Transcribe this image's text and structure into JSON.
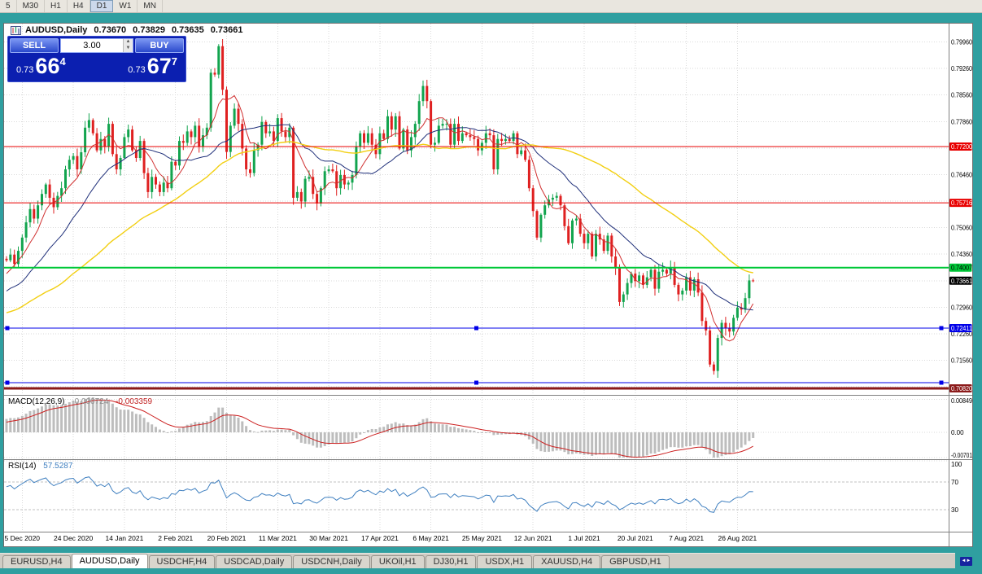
{
  "periods_toolbar": {
    "items": [
      "5",
      "M30",
      "H1",
      "H4",
      "D1",
      "W1",
      "MN"
    ],
    "active": "D1"
  },
  "chart": {
    "symbol": "AUDUSD,Daily",
    "ohlc": {
      "open": "0.73670",
      "high": "0.73829",
      "low": "0.73635",
      "close": "0.73661"
    }
  },
  "trade_panel": {
    "sell_label": "SELL",
    "buy_label": "BUY",
    "volume": "3.00",
    "sell_price": {
      "base": "0.73",
      "big": "66",
      "sup": "4"
    },
    "buy_price": {
      "base": "0.73",
      "big": "67",
      "sup": "7"
    }
  },
  "price_axis": {
    "grid_levels": [
      0.7996,
      0.7926,
      0.7856,
      0.7786,
      0.7716,
      0.7646,
      0.7576,
      0.7506,
      0.7436,
      0.7366,
      0.7296,
      0.7226,
      0.7156,
      0.7086
    ],
    "labels": [
      {
        "text": "0.79960",
        "value": 0.7996
      },
      {
        "text": "0.79260",
        "value": 0.7926
      },
      {
        "text": "0.78560",
        "value": 0.7856
      },
      {
        "text": "0.77860",
        "value": 0.7786
      },
      {
        "text": "0.76460",
        "value": 0.7646
      },
      {
        "text": "0.75060",
        "value": 0.7506
      },
      {
        "text": "0.74360",
        "value": 0.7436
      },
      {
        "text": "0.72960",
        "value": 0.7296
      },
      {
        "text": "0.72260",
        "value": 0.7226
      },
      {
        "text": "0.71560",
        "value": 0.7156
      }
    ]
  },
  "current_price": {
    "text": "0.73661",
    "value": 0.73661,
    "bg": "#000000",
    "text_color": "#ffffff"
  },
  "levels": [
    {
      "text": "0.77200",
      "value": 0.772,
      "color": "#e80000",
      "text_color": "#ffffff",
      "width": 1,
      "handles": false
    },
    {
      "text": "0.75716",
      "value": 0.75716,
      "color": "#e80000",
      "text_color": "#ffffff",
      "width": 1,
      "handles": false
    },
    {
      "text": "0.74007",
      "value": 0.74007,
      "color": "#00c838",
      "text_color": "#000000",
      "width": 2,
      "handles": false
    },
    {
      "text": "0.72411",
      "value": 0.72411,
      "color": "#0000e8",
      "text_color": "#ffffff",
      "width": 1,
      "handles": true
    },
    {
      "text": "",
      "value": 0.7097,
      "color": "#0000e8",
      "text_color": "#ffffff",
      "width": 1,
      "handles": true
    },
    {
      "text": "0.70820",
      "value": 0.7082,
      "color": "#8b1a1a",
      "text_color": "#ffffff",
      "width": 3,
      "handles": false
    }
  ],
  "x_axis": {
    "labels": [
      "5 Dec 2020",
      "24 Dec 2020",
      "14 Jan 2021",
      "2 Feb 2021",
      "20 Feb 2021",
      "11 Mar 2021",
      "30 Mar 2021",
      "17 Apr 2021",
      "6 May 2021",
      "25 May 2021",
      "12 Jun 2021",
      "1 Jul 2021",
      "20 Jul 2021",
      "7 Aug 2021",
      "26 Aug 2021"
    ]
  },
  "macd": {
    "title": "MACD(12,26,9)",
    "main_value": "-0.000724",
    "signal_value": "-0.003359",
    "fast": 12,
    "slow": 26,
    "signal": 9,
    "axis_labels": [
      {
        "text": "0.00849",
        "value": 0.00849
      },
      {
        "text": "0.00",
        "value": 0
      },
      {
        "text": "-0.00701",
        "value": -0.00701
      }
    ]
  },
  "rsi": {
    "title": "RSI(14)",
    "value": "57.5287",
    "period": 14,
    "axis_labels": [
      {
        "text": "100",
        "value": 100
      },
      {
        "text": "70",
        "value": 70
      },
      {
        "text": "30",
        "value": 30
      }
    ],
    "levels": [
      70,
      30
    ]
  },
  "tabs": {
    "active_index": 1,
    "items": [
      "EURUSD,H4",
      "AUDUSD,Daily",
      "USDCHF,H4",
      "USDCAD,Daily",
      "USDCNH,Daily",
      "UKOil,H1",
      "DJ30,H1",
      "USDX,H1",
      "XAUUSD,H4",
      "GBPUSD,H1"
    ]
  },
  "scroll_button": {
    "glyph": "◄►"
  },
  "chart_data": {
    "type": "candlestick",
    "symbol": "AUDUSD",
    "timeframe": "Daily",
    "up_color": "#12a44e",
    "down_color": "#df2020",
    "price_range": {
      "top": 0.8047,
      "bottom": 0.7067
    },
    "ma_overlays": [
      {
        "type": "sma",
        "period": 7,
        "color": "#d03030",
        "width": 1
      },
      {
        "type": "sma",
        "period": 21,
        "color": "#20307a",
        "width": 1
      },
      {
        "type": "sma",
        "period": 55,
        "color": "#f2cf12",
        "width": 1.4
      }
    ],
    "pre_closes": [
      0.728,
      0.726,
      0.723,
      0.72,
      0.717,
      0.715,
      0.717,
      0.72,
      0.723,
      0.726,
      0.729,
      0.731,
      0.729,
      0.726,
      0.723,
      0.72,
      0.718,
      0.721,
      0.724,
      0.727,
      0.73,
      0.732,
      0.729,
      0.726,
      0.724,
      0.721,
      0.719,
      0.722,
      0.725,
      0.728,
      0.731,
      0.733,
      0.73,
      0.727,
      0.725,
      0.728,
      0.731,
      0.734,
      0.731,
      0.728,
      0.726,
      0.729,
      0.732,
      0.735,
      0.733,
      0.73,
      0.732,
      0.735,
      0.738,
      0.736,
      0.733,
      0.736,
      0.739,
      0.741,
      0.7424
    ],
    "closes": [
      0.742,
      0.7435,
      0.741,
      0.7445,
      0.748,
      0.752,
      0.7555,
      0.753,
      0.7565,
      0.7595,
      0.762,
      0.7585,
      0.756,
      0.759,
      0.761,
      0.766,
      0.7685,
      0.7695,
      0.766,
      0.7705,
      0.777,
      0.779,
      0.7755,
      0.771,
      0.774,
      0.772,
      0.778,
      0.77,
      0.766,
      0.769,
      0.7745,
      0.7765,
      0.771,
      0.769,
      0.7735,
      0.765,
      0.76,
      0.764,
      0.762,
      0.76,
      0.7625,
      0.761,
      0.768,
      0.767,
      0.7735,
      0.773,
      0.776,
      0.7745,
      0.7775,
      0.772,
      0.775,
      0.777,
      0.7915,
      0.791,
      0.7985,
      0.787,
      0.7706,
      0.7775,
      0.782,
      0.778,
      0.7715,
      0.766,
      0.765,
      0.771,
      0.7725,
      0.7785,
      0.7755,
      0.776,
      0.7735,
      0.7795,
      0.776,
      0.7745,
      0.777,
      0.7585,
      0.76,
      0.7575,
      0.7635,
      0.764,
      0.7595,
      0.757,
      0.761,
      0.7655,
      0.766,
      0.7655,
      0.761,
      0.7645,
      0.762,
      0.7625,
      0.7645,
      0.772,
      0.7755,
      0.773,
      0.7755,
      0.7725,
      0.77,
      0.7755,
      0.774,
      0.78,
      0.7765,
      0.78,
      0.7715,
      0.7765,
      0.771,
      0.7745,
      0.778,
      0.784,
      0.788,
      0.784,
      0.7725,
      0.773,
      0.7775,
      0.778,
      0.778,
      0.7725,
      0.778,
      0.7735,
      0.7755,
      0.775,
      0.7745,
      0.774,
      0.771,
      0.773,
      0.7755,
      0.775,
      0.766,
      0.774,
      0.7735,
      0.774,
      0.7735,
      0.7755,
      0.77,
      0.771,
      0.7685,
      0.761,
      0.755,
      0.748,
      0.754,
      0.7565,
      0.758,
      0.7585,
      0.759,
      0.7565,
      0.751,
      0.7465,
      0.7525,
      0.753,
      0.749,
      0.7465,
      0.749,
      0.743,
      0.749,
      0.7475,
      0.7445,
      0.7485,
      0.743,
      0.74,
      0.731,
      0.733,
      0.736,
      0.7385,
      0.7365,
      0.738,
      0.7355,
      0.7375,
      0.7395,
      0.7345,
      0.739,
      0.7395,
      0.7385,
      0.74,
      0.7355,
      0.733,
      0.734,
      0.7375,
      0.734,
      0.737,
      0.7335,
      0.726,
      0.7235,
      0.7145,
      0.7128,
      0.7215,
      0.7255,
      0.724,
      0.7232,
      0.7268,
      0.7295,
      0.729,
      0.732,
      0.7367,
      0.7366
    ]
  }
}
